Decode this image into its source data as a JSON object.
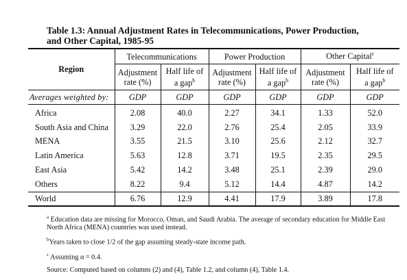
{
  "title": {
    "line1": "Table 1.3: Annual Adjustment Rates in Telecommunications, Power Production,",
    "line2": "and Other Capital, 1985-95"
  },
  "header": {
    "region": "Region",
    "groups": [
      {
        "label": "Telecommunications",
        "sup": ""
      },
      {
        "label": "Power Production",
        "sup": ""
      },
      {
        "label": "Other Capital",
        "sup": "c"
      }
    ],
    "adj_line1": "Adjustment",
    "adj_line2": "rate (%)",
    "half_line1": "Half life of",
    "half_line2": "a gap",
    "half_sup": "b"
  },
  "weights": {
    "label": "Averages weighted by:",
    "values": [
      "GDP",
      "GDP",
      "GDP",
      "GDP",
      "GDP",
      "GDP"
    ]
  },
  "rows": [
    {
      "region": "Africa",
      "values": [
        "2.08",
        "40.0",
        "2.27",
        "34.1",
        "1.33",
        "52.0"
      ]
    },
    {
      "region": "South Asia and China",
      "values": [
        "3.29",
        "22.0",
        "2.76",
        "25.4",
        "2.05",
        "33.9"
      ]
    },
    {
      "region": "MENA",
      "values": [
        "3.55",
        "21.5",
        "3.10",
        "25.6",
        "2.12",
        "32.7"
      ]
    },
    {
      "region": "Latin America",
      "values": [
        "5.63",
        "12.8",
        "3.71",
        "19.5",
        "2.35",
        "29.5"
      ]
    },
    {
      "region": "East Asia",
      "values": [
        "5.42",
        "14.2",
        "3.48",
        "25.1",
        "2.39",
        "29.0"
      ]
    },
    {
      "region": "Others",
      "values": [
        "8.22",
        "9.4",
        "5.12",
        "14.4",
        "4.87",
        "14.2"
      ]
    }
  ],
  "world": {
    "region": "World",
    "values": [
      "6.76",
      "12.9",
      "4.41",
      "17.9",
      "3.89",
      "17.8"
    ]
  },
  "notes": {
    "a_marker": "a",
    "a_text": " Education data are missing for Morocco, Oman, and Saudi Arabia. The average of secondary education for Middle East North Africa (MENA) countries was used instead.",
    "b_marker": "b",
    "b_text": "Years taken to close 1/2 of the gap assuming steady-state income path.",
    "c_marker": "c",
    "c_text": " Assuming α = 0.4.",
    "source": "Source: Computed based on columns (2) and (4), Table 1.2, and column (4), Table 1.4."
  }
}
